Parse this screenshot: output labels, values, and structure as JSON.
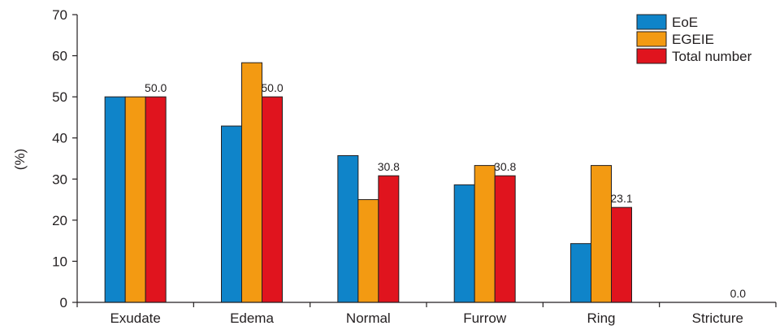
{
  "chart_data": {
    "type": "bar",
    "title": "",
    "xlabel": "",
    "ylabel": "(%)",
    "ylim": [
      0,
      70
    ],
    "yticks": [
      0,
      10,
      20,
      30,
      40,
      50,
      60,
      70
    ],
    "grid": false,
    "legend_position": "top-right",
    "categories": [
      "Exudate",
      "Edema",
      "Normal",
      "Furrow",
      "Ring",
      "Stricture"
    ],
    "series": [
      {
        "name": "EoE",
        "color": "#0f84c9",
        "values": [
          50.0,
          42.9,
          35.7,
          28.6,
          14.3,
          0.0
        ]
      },
      {
        "name": "EGEIE",
        "color": "#f39a12",
        "values": [
          50.0,
          58.3,
          25.0,
          33.3,
          33.3,
          0.0
        ]
      },
      {
        "name": "Total number",
        "color": "#e0141e",
        "values": [
          50.0,
          50.0,
          30.8,
          30.8,
          23.1,
          0.0
        ]
      }
    ],
    "data_labels": [
      "50.0",
      "50.0",
      "30.8",
      "30.8",
      "23.1",
      "0.0"
    ]
  }
}
